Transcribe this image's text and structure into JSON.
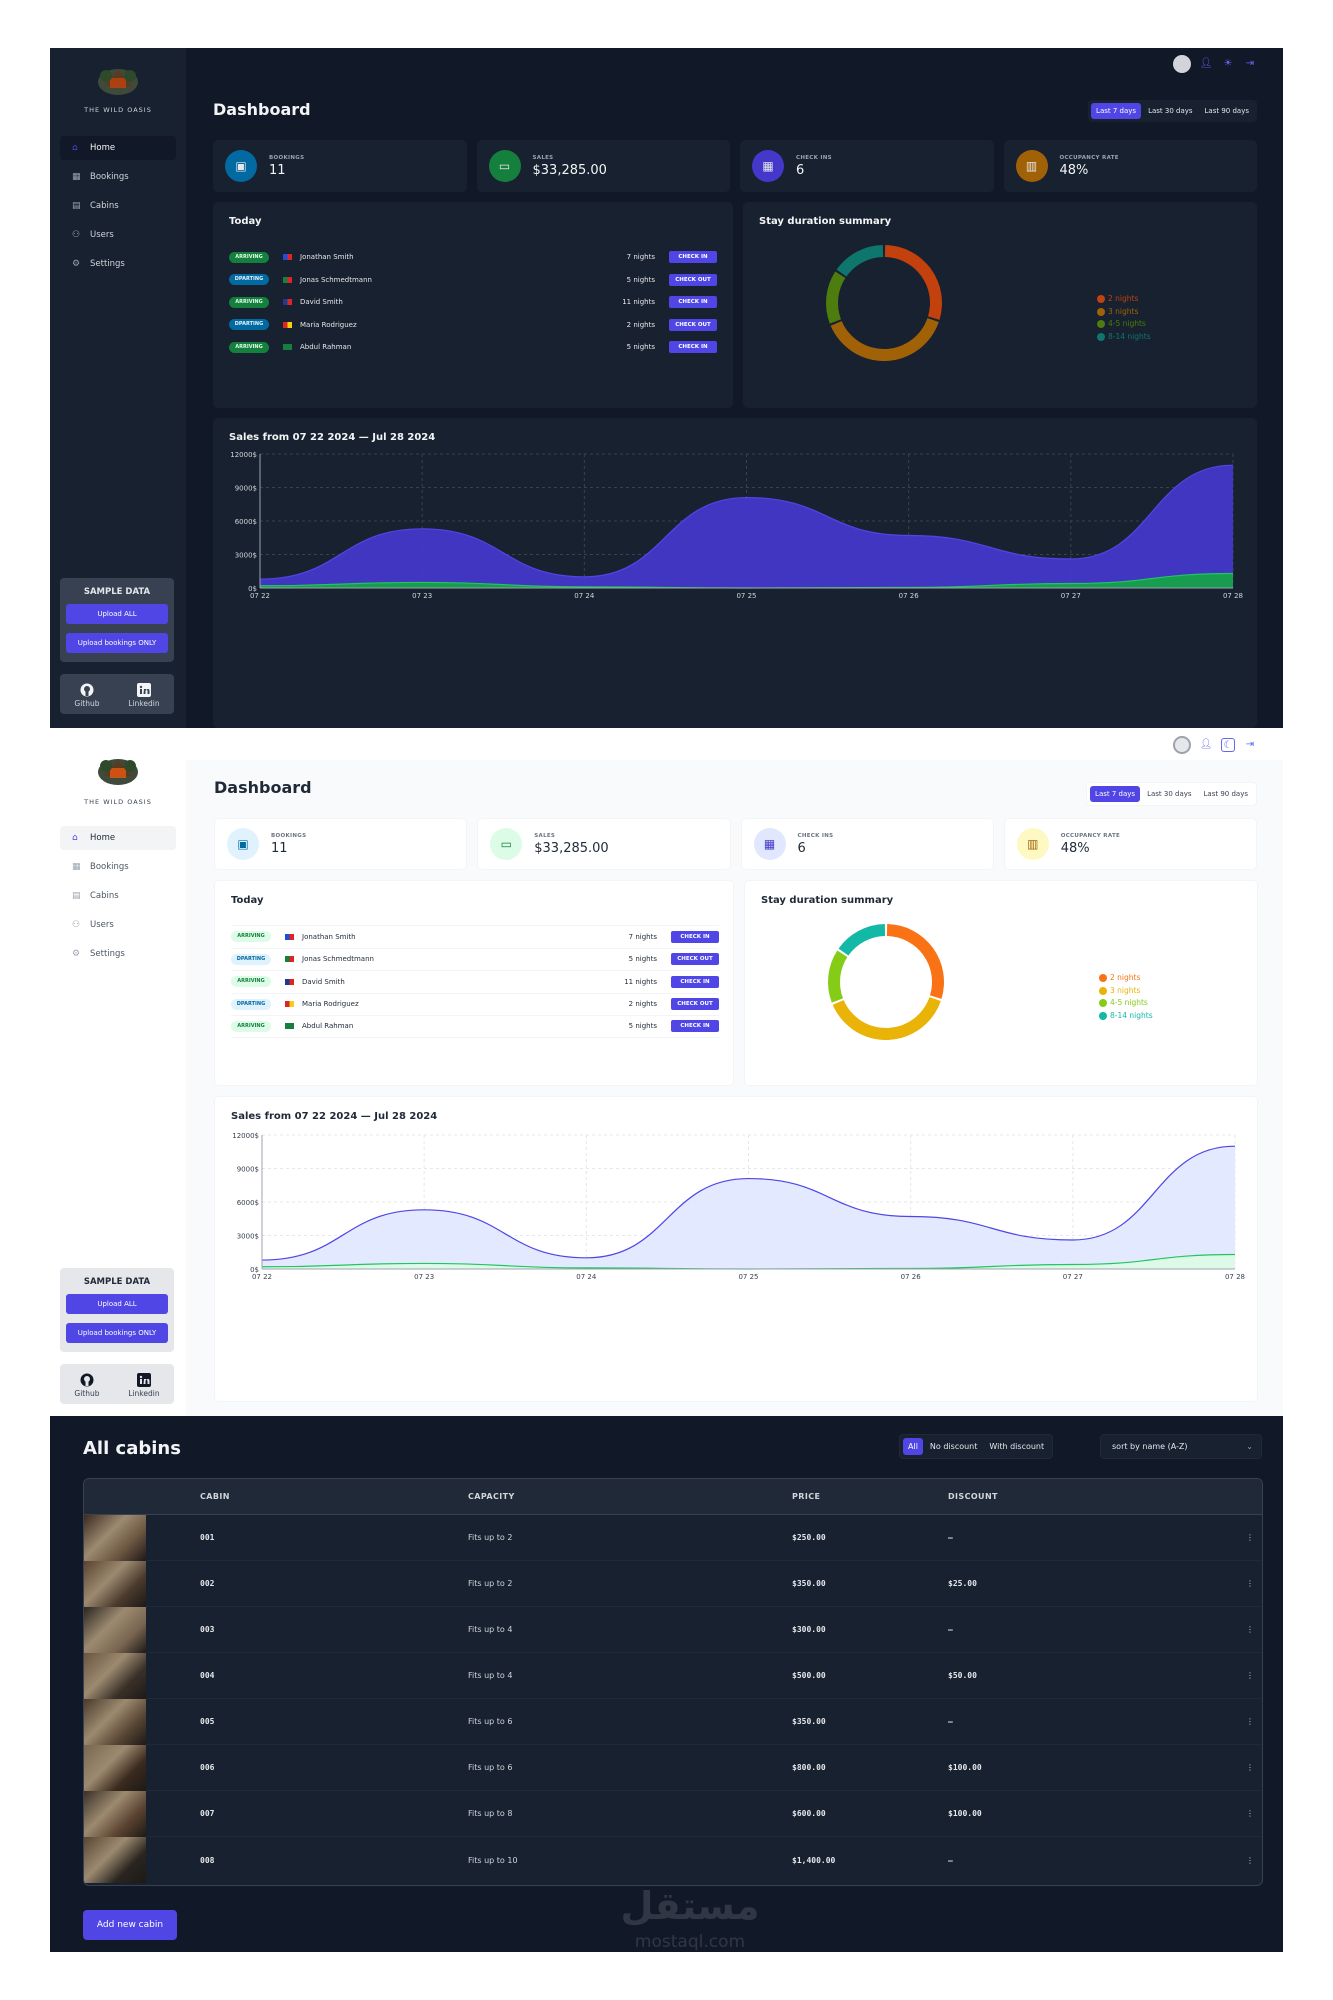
{
  "brand": "THE WILD OASIS",
  "nav": [
    {
      "label": "Home",
      "icon": "home-icon"
    },
    {
      "label": "Bookings",
      "icon": "calendar-icon"
    },
    {
      "label": "Cabins",
      "icon": "building-icon"
    },
    {
      "label": "Users",
      "icon": "users-icon"
    },
    {
      "label": "Settings",
      "icon": "gear-icon"
    }
  ],
  "sample": {
    "title": "SAMPLE DATA",
    "upload_all": "Upload ALL",
    "upload_bookings": "Upload bookings ONLY"
  },
  "social": {
    "github": "Github",
    "linkedin": "Linkedin"
  },
  "page_title": "Dashboard",
  "filters": [
    "Last 7 days",
    "Last 30 days",
    "Last 90 days"
  ],
  "stats": [
    {
      "label": "BOOKINGS",
      "value": "11",
      "icon": "briefcase-icon",
      "color": "#0369a1"
    },
    {
      "label": "SALES",
      "value": "$33,285.00",
      "icon": "banknotes-icon",
      "color": "#15803d"
    },
    {
      "label": "CHECK INS",
      "value": "6",
      "icon": "calendar-days-icon",
      "color": "#4338ca"
    },
    {
      "label": "OCCUPANCY RATE",
      "value": "48%",
      "icon": "chart-bar-icon",
      "color": "#a16207"
    }
  ],
  "today": {
    "title": "Today",
    "rows": [
      {
        "status": "ARRIVING",
        "flag": "gb",
        "name": "Jonathan Smith",
        "nights": "7 nights",
        "action": "CHECK IN"
      },
      {
        "status": "DPARTING",
        "flag": "pt",
        "name": "Jonas Schmedtmann",
        "nights": "5 nights",
        "action": "CHECK OUT"
      },
      {
        "status": "ARRIVING",
        "flag": "au",
        "name": "David Smith",
        "nights": "11 nights",
        "action": "CHECK IN"
      },
      {
        "status": "DPARTING",
        "flag": "es",
        "name": "Maria Rodriguez",
        "nights": "2 nights",
        "action": "CHECK OUT"
      },
      {
        "status": "ARRIVING",
        "flag": "sa",
        "name": "Abdul Rahman",
        "nights": "5 nights",
        "action": "CHECK IN"
      }
    ]
  },
  "duration": {
    "title": "Stay duration summary",
    "legend": [
      {
        "label": "2 nights",
        "color": "#f97316",
        "dark": "#c2410c",
        "value": 27
      },
      {
        "label": "3 nights",
        "color": "#eab308",
        "dark": "#a16207",
        "value": 35
      },
      {
        "label": "4-5 nights",
        "color": "#84cc16",
        "dark": "#4d7c0f",
        "value": 14
      },
      {
        "label": "8-14 nights",
        "color": "#14b8a6",
        "dark": "#0f766e",
        "value": 14
      }
    ]
  },
  "chart_data": {
    "type": "area",
    "title": "Sales from 07 22 2024 — Jul 28 2024",
    "categories": [
      "07 22",
      "07 23",
      "07 24",
      "07 25",
      "07 26",
      "07 27",
      "07 28"
    ],
    "yticks": [
      "0$",
      "3000$",
      "6000$",
      "9000$",
      "12000$"
    ],
    "ylim": [
      0,
      12000
    ],
    "series": [
      {
        "values": [
          800,
          5300,
          1000,
          8100,
          4700,
          2600,
          11000
        ],
        "color": "#4f46e5"
      },
      {
        "values": [
          200,
          500,
          100,
          0,
          50,
          400,
          1300
        ],
        "color": "#22c55e"
      }
    ]
  },
  "cabins": {
    "title": "All cabins",
    "filters": [
      "All",
      "No discount",
      "With discount"
    ],
    "sort": "sort by name (A-Z)",
    "headers": [
      "CABIN",
      "CAPACITY",
      "PRICE",
      "DISCOUNT"
    ],
    "rows": [
      {
        "name": "001",
        "capacity": "Fits up to 2",
        "price": "$250.00",
        "discount": "—"
      },
      {
        "name": "002",
        "capacity": "Fits up to 2",
        "price": "$350.00",
        "discount": "$25.00"
      },
      {
        "name": "003",
        "capacity": "Fits up to 4",
        "price": "$300.00",
        "discount": "—"
      },
      {
        "name": "004",
        "capacity": "Fits up to 4",
        "price": "$500.00",
        "discount": "$50.00"
      },
      {
        "name": "005",
        "capacity": "Fits up to 6",
        "price": "$350.00",
        "discount": "—"
      },
      {
        "name": "006",
        "capacity": "Fits up to 6",
        "price": "$800.00",
        "discount": "$100.00"
      },
      {
        "name": "007",
        "capacity": "Fits up to 8",
        "price": "$600.00",
        "discount": "$100.00"
      },
      {
        "name": "008",
        "capacity": "Fits up to 10",
        "price": "$1,400.00",
        "discount": "—"
      }
    ],
    "add_button": "Add new cabin"
  },
  "watermark": {
    "ar": "مستقل",
    "en": "mostaql.com"
  }
}
